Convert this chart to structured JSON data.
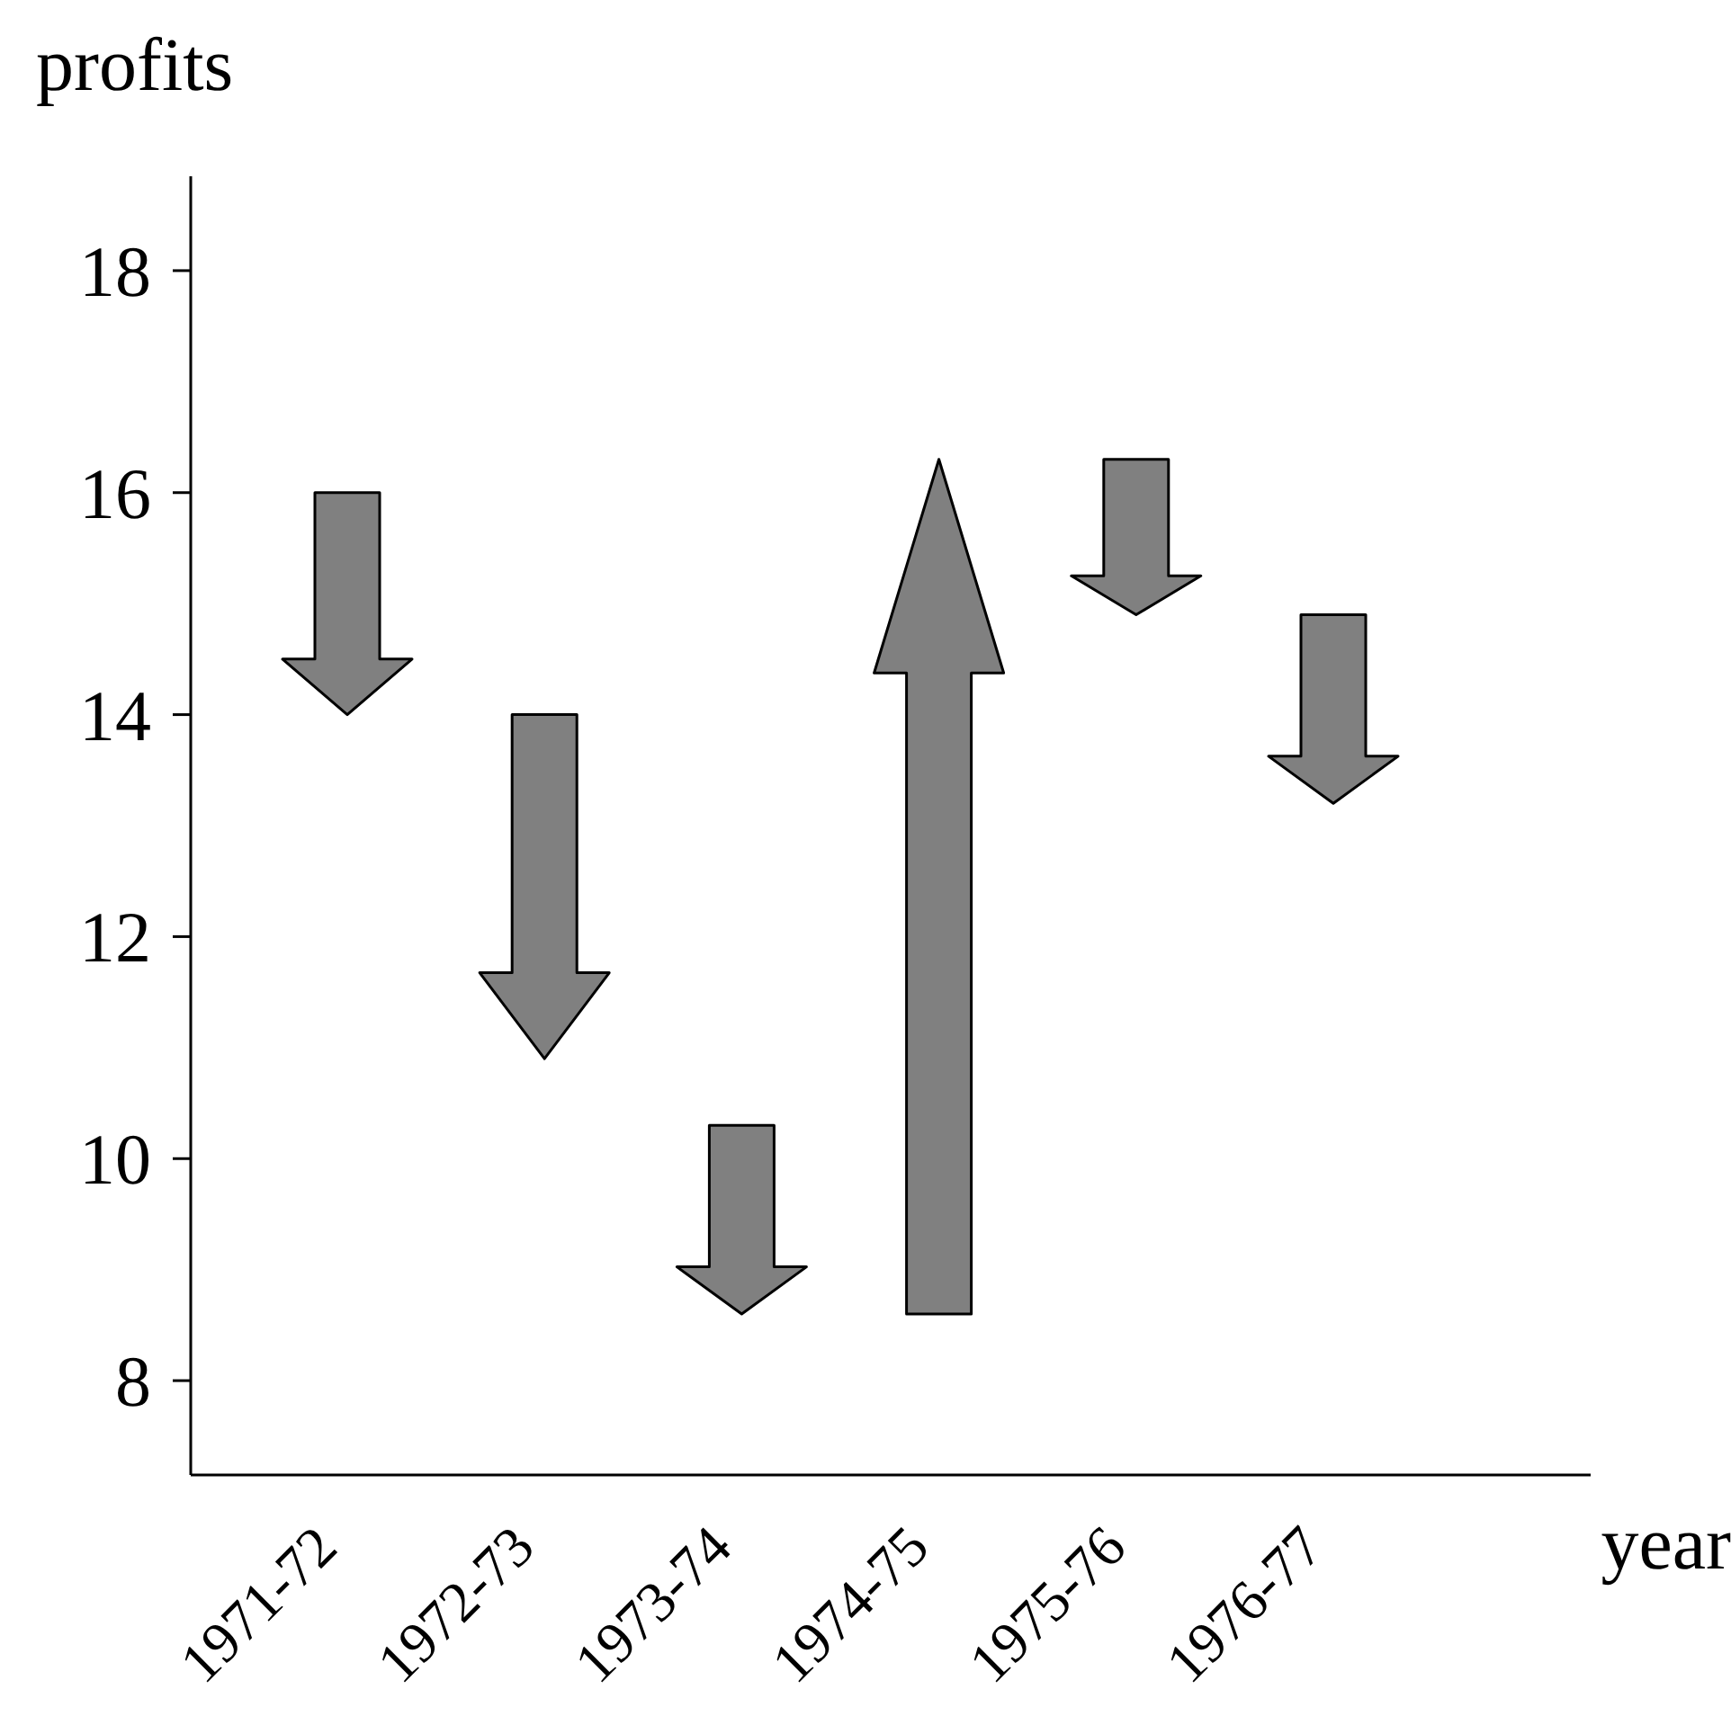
{
  "chart_data": {
    "type": "bar",
    "ylabel": "profits",
    "xlabel": "year",
    "categories": [
      "1971-72",
      "1972-73",
      "1973-74",
      "1974-75",
      "1975-76",
      "1976-77"
    ],
    "base": [
      16,
      14,
      10.3,
      8.6,
      16.3,
      14.9
    ],
    "values": [
      -2,
      -3.1,
      -1.7,
      7.7,
      -1.4,
      -1.7
    ],
    "color": "#808080",
    "ylim": [
      7.15,
      18.85
    ],
    "yticks": [
      8,
      10,
      12,
      14,
      16,
      18
    ],
    "grid": false
  }
}
